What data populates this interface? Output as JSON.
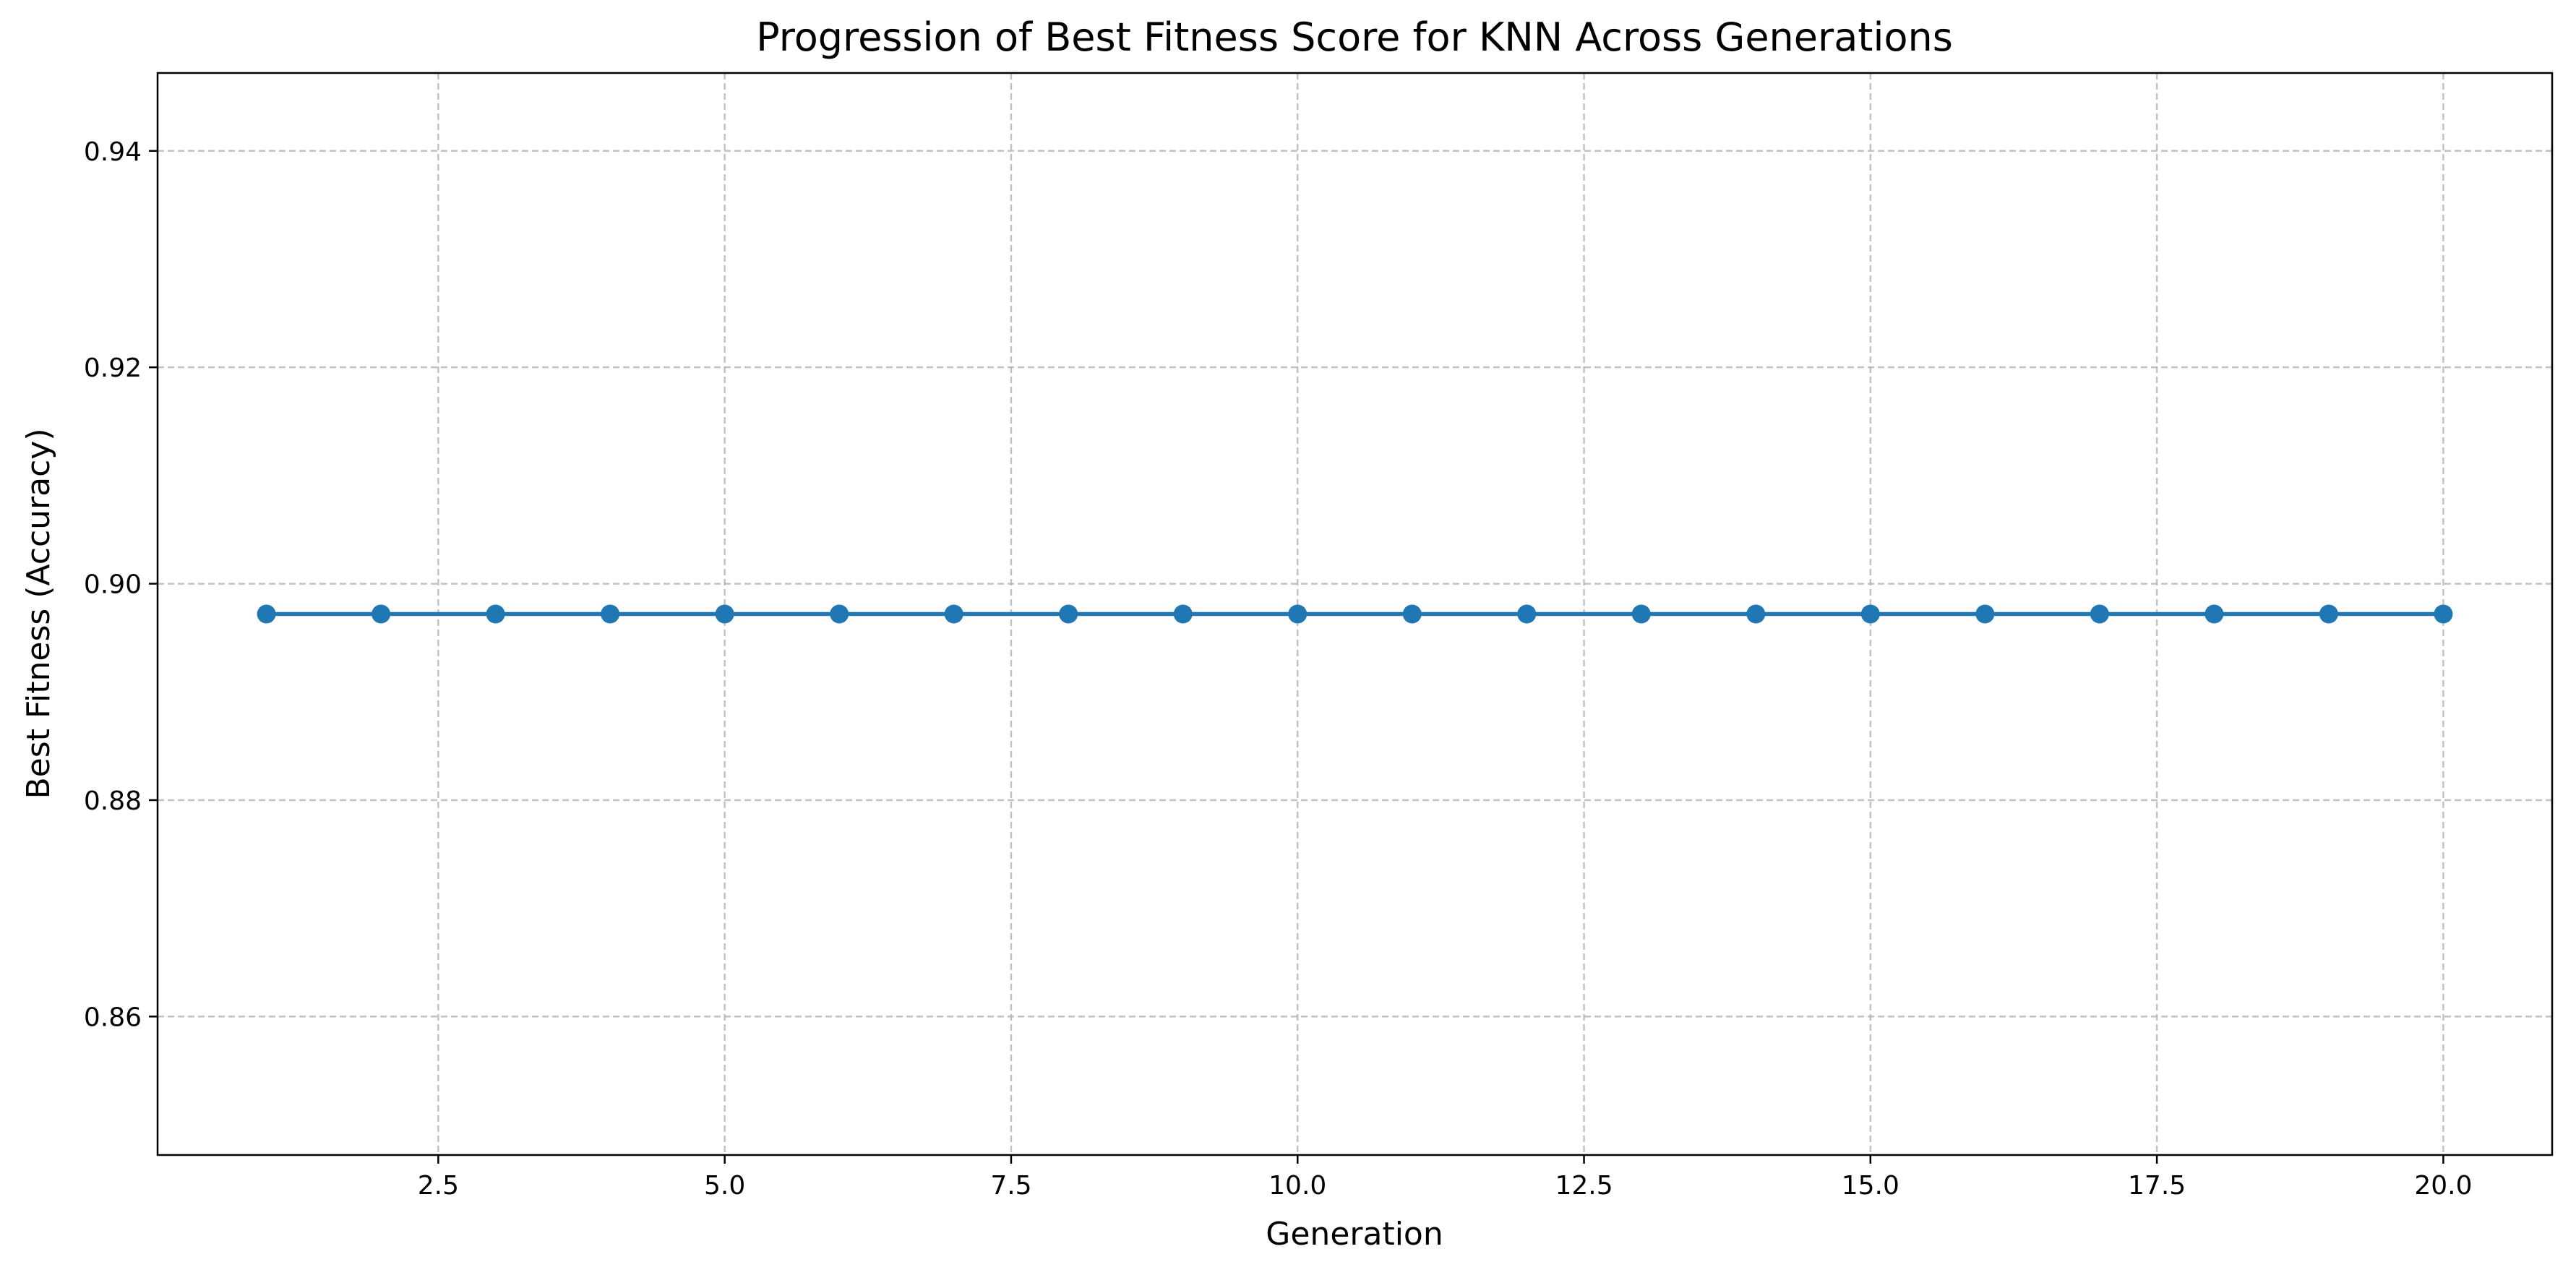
{
  "chart_data": {
    "type": "line",
    "title": "Progression of Best Fitness Score for KNN Across Generations",
    "xlabel": "Generation",
    "ylabel": "Best Fitness (Accuracy)",
    "xlim": [
      0.05,
      20.95
    ],
    "ylim": [
      0.8472,
      0.9472
    ],
    "xticks": [
      2.5,
      5.0,
      7.5,
      10.0,
      12.5,
      15.0,
      17.5,
      20.0
    ],
    "xtick_labels": [
      "2.5",
      "5.0",
      "7.5",
      "10.0",
      "12.5",
      "15.0",
      "17.5",
      "20.0"
    ],
    "yticks": [
      0.86,
      0.88,
      0.9,
      0.92,
      0.94
    ],
    "ytick_labels": [
      "0.86",
      "0.88",
      "0.90",
      "0.92",
      "0.94"
    ],
    "grid": true,
    "legend": "none",
    "series": [
      {
        "color": "#1f77b4",
        "marker": "circle",
        "x": [
          1,
          2,
          3,
          4,
          5,
          6,
          7,
          8,
          9,
          10,
          11,
          12,
          13,
          14,
          15,
          16,
          17,
          18,
          19,
          20
        ],
        "y": [
          0.8972,
          0.8972,
          0.8972,
          0.8972,
          0.8972,
          0.8972,
          0.8972,
          0.8972,
          0.8972,
          0.8972,
          0.8972,
          0.8972,
          0.8972,
          0.8972,
          0.8972,
          0.8972,
          0.8972,
          0.8972,
          0.8972,
          0.8972
        ]
      }
    ]
  }
}
